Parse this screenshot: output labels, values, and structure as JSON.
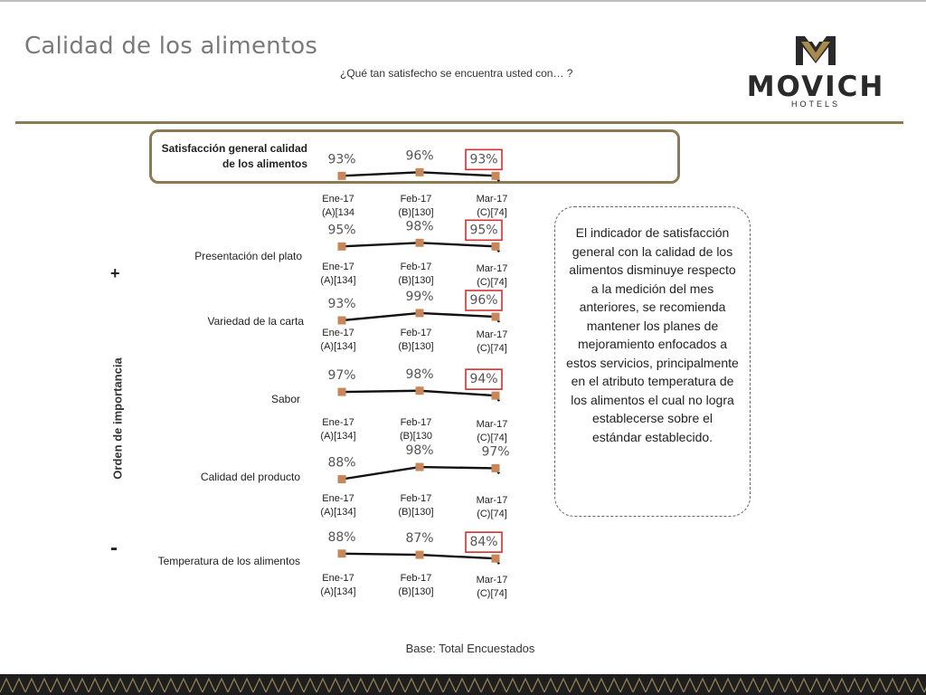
{
  "header": {
    "title": "Calidad de los alimentos",
    "subtitle": "¿Qué tan satisfecho se encuentra usted con… ?"
  },
  "logo": {
    "word": "MOVICH",
    "sub": "HOTELS"
  },
  "axis": {
    "label": "Orden de importancia",
    "plus": "+",
    "minus": "-"
  },
  "note": "El indicador de satisfacción general con la calidad de los alimentos disminuye respecto a la medición del mes anteriores, se recomienda mantener los planes de mejoramiento enfocados a estos servicios, principalmente en el atributo temperatura de los alimentos el cual no logra establecerse sobre el estándar establecido.",
  "base": "Base: Total Encuestados",
  "colors": {
    "accent": "#8b7a52",
    "marker": "#c8875a",
    "highlight_box": "#d13030",
    "line": "#111111"
  },
  "chart_data": {
    "type": "line",
    "series": [
      {
        "name": "Satisfacción general calidad de los alimentos",
        "name_lines": [
          "Satisfacción general calidad",
          "de los alimentos"
        ],
        "values": [
          93,
          96,
          93
        ],
        "labels": [
          "93%",
          "96%",
          "93%"
        ],
        "highlighted": [
          false,
          false,
          true
        ],
        "x": [
          "Ene-17\n(A)[134",
          "Feb-17\n(B)[130]",
          "Mar-17\n(C)[74]"
        ]
      },
      {
        "name": "Presentación del plato",
        "name_lines": [
          "Presentación del plato"
        ],
        "values": [
          95,
          98,
          95
        ],
        "labels": [
          "95%",
          "98%",
          "95%"
        ],
        "highlighted": [
          false,
          false,
          true
        ],
        "x": [
          "Ene-17\n(A)[134]",
          "Feb-17\n(B)[130]",
          "Mar-17\n(C)[74]"
        ]
      },
      {
        "name": "Variedad de la carta",
        "name_lines": [
          "Variedad de la carta"
        ],
        "values": [
          93,
          99,
          96
        ],
        "labels": [
          "93%",
          "99%",
          "96%"
        ],
        "highlighted": [
          false,
          false,
          true
        ],
        "x": [
          "Ene-17\n(A)[134]",
          "Feb-17\n(B)[130]",
          "Mar-17\n(C)[74]"
        ]
      },
      {
        "name": "Sabor",
        "name_lines": [
          "Sabor"
        ],
        "values": [
          97,
          98,
          94
        ],
        "labels": [
          "97%",
          "98%",
          "94%"
        ],
        "highlighted": [
          false,
          false,
          true
        ],
        "x": [
          "Ene-17\n(A)[134]",
          "Feb-17\n(B)[130",
          "Mar-17\n(C)[74]"
        ]
      },
      {
        "name": "Calidad del producto",
        "name_lines": [
          "Calidad del producto"
        ],
        "values": [
          88,
          98,
          97
        ],
        "labels": [
          "88%",
          "98%",
          "97%"
        ],
        "highlighted": [
          false,
          false,
          false
        ],
        "x": [
          "Ene-17\n(A)[134]",
          "Feb-17\n(B)[130]",
          "Mar-17\n(C)[74]"
        ]
      },
      {
        "name": "Temperatura de los alimentos",
        "name_lines": [
          "Temperatura de los alimentos"
        ],
        "values": [
          88,
          87,
          84
        ],
        "labels": [
          "88%",
          "87%",
          "84%"
        ],
        "highlighted": [
          false,
          false,
          true
        ],
        "x": [
          "Ene-17\n(A)[134]",
          "Feb-17\n(B)[130]",
          "Mar-17\n(C)[74]"
        ]
      }
    ]
  }
}
